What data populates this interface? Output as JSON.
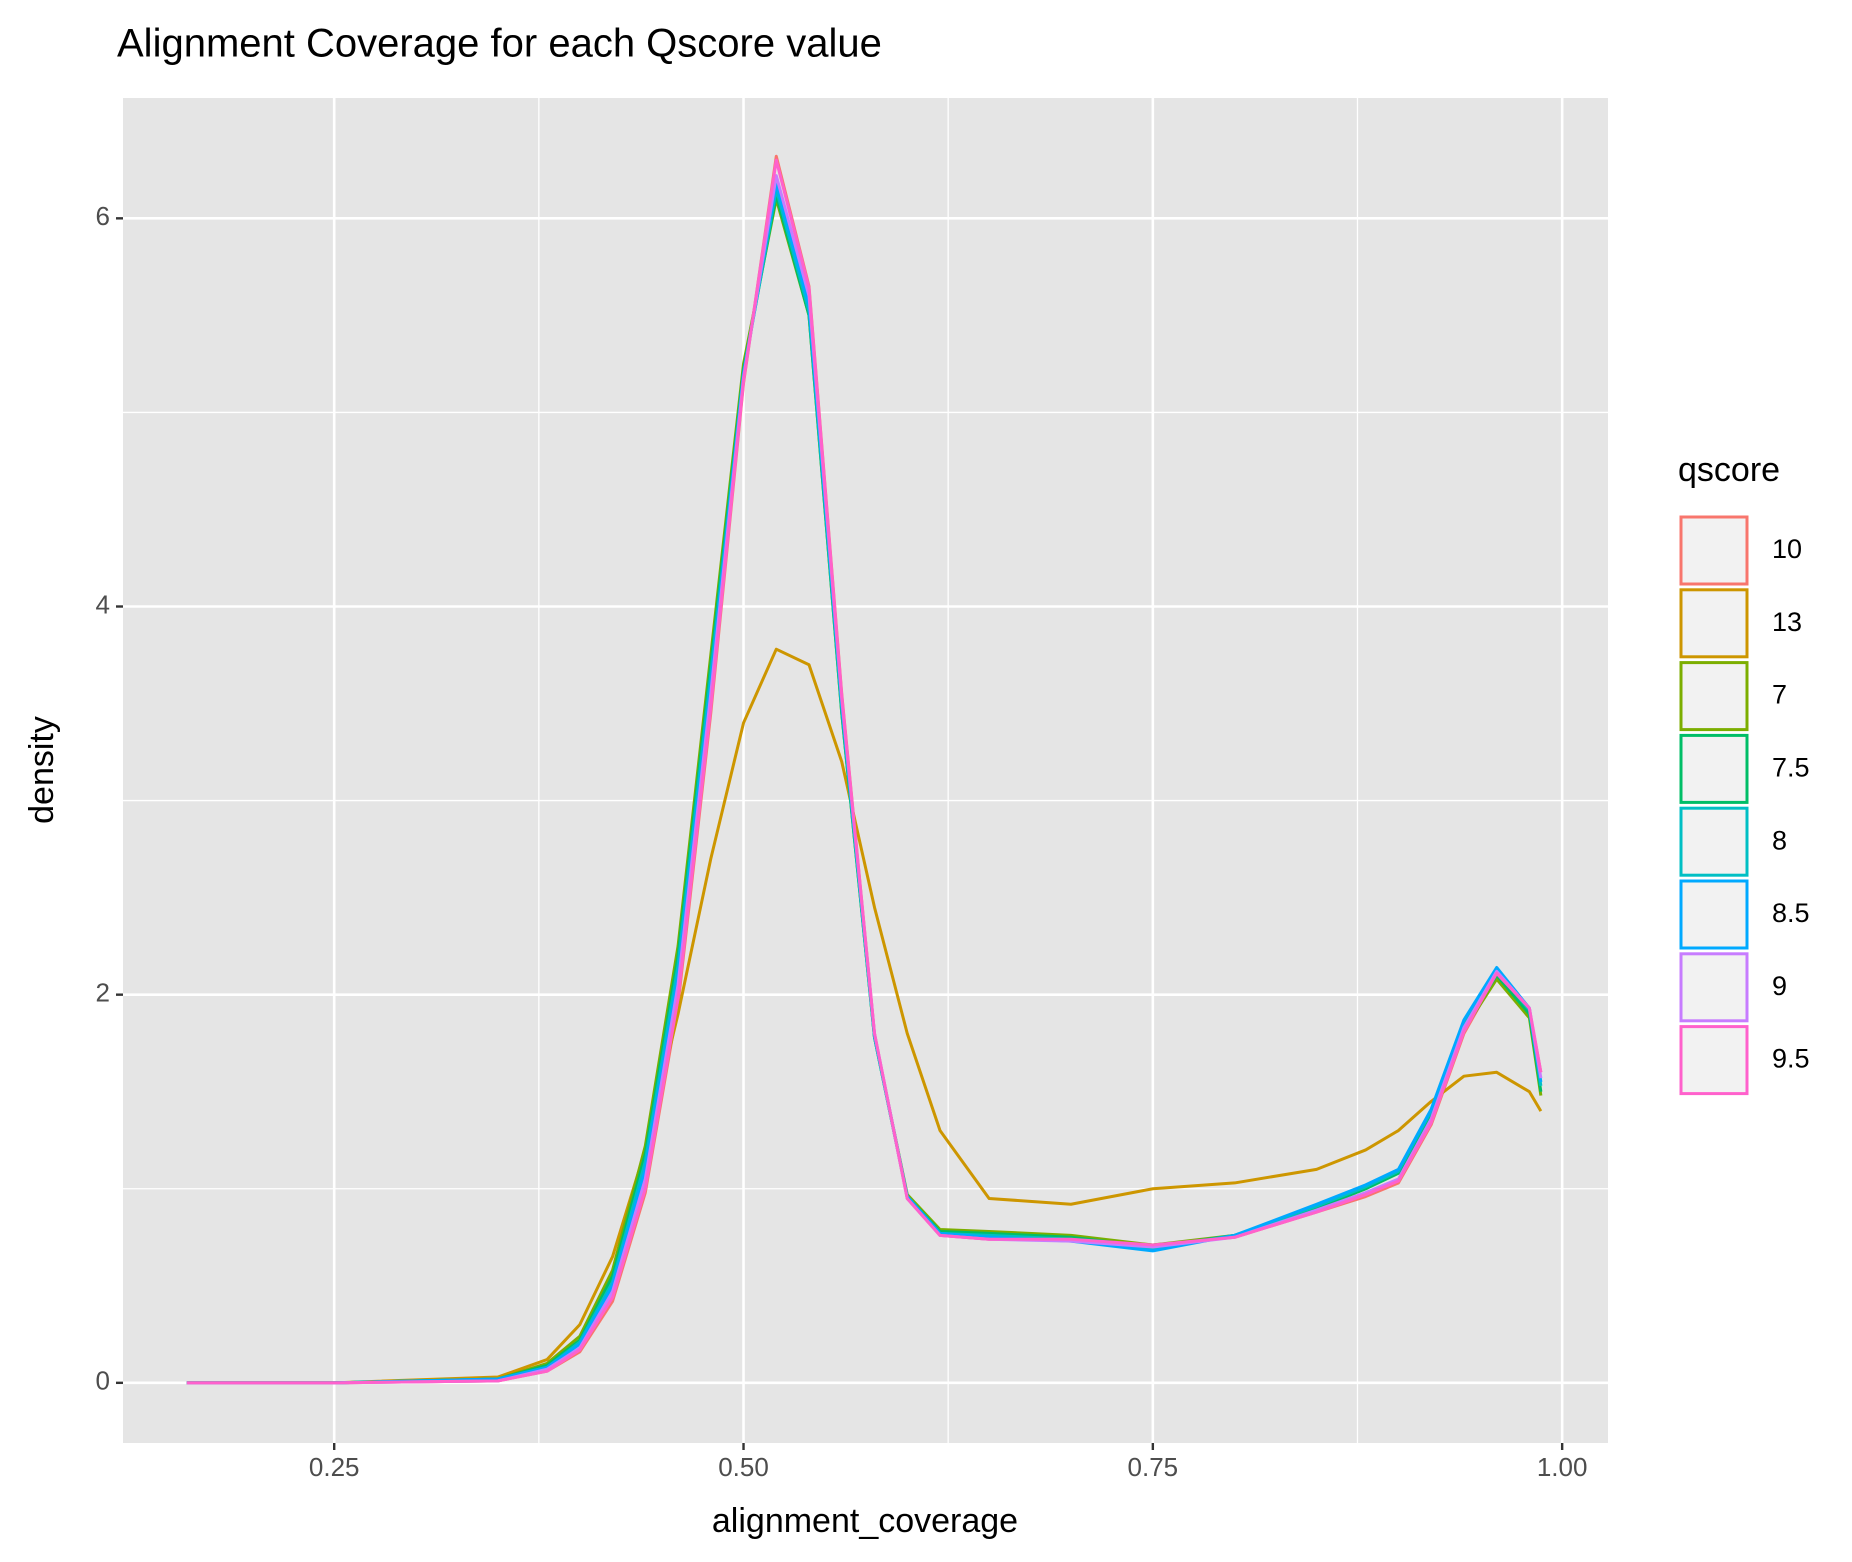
{
  "chart_data": {
    "type": "line",
    "title": "Alignment Coverage for each Qscore value",
    "x_label": "alignment_coverage",
    "y_label": "density",
    "legend_title": "qscore",
    "legend_position": "right",
    "grid": true,
    "xlim": [
      0.121,
      1.028
    ],
    "ylim": [
      -0.31,
      6.62
    ],
    "xticks": [
      {
        "value": 0.25,
        "label": "0.25"
      },
      {
        "value": 0.5,
        "label": "0.50"
      },
      {
        "value": 0.75,
        "label": "0.75"
      },
      {
        "value": 1.0,
        "label": "1.00"
      }
    ],
    "yticks": [
      0,
      2,
      4,
      6
    ],
    "x": [
      0.16,
      0.25,
      0.35,
      0.38,
      0.4,
      0.42,
      0.44,
      0.46,
      0.48,
      0.5,
      0.52,
      0.54,
      0.56,
      0.58,
      0.6,
      0.62,
      0.65,
      0.7,
      0.75,
      0.8,
      0.85,
      0.88,
      0.9,
      0.92,
      0.94,
      0.96,
      0.98,
      0.987
    ],
    "series": [
      {
        "name": "10",
        "color": "#F8766D",
        "values": [
          0,
          0,
          0.01,
          0.06,
          0.16,
          0.42,
          0.98,
          1.95,
          3.45,
          5.15,
          6.32,
          5.65,
          3.55,
          1.8,
          0.95,
          0.76,
          0.74,
          0.74,
          0.71,
          0.75,
          0.88,
          0.96,
          1.03,
          1.33,
          1.8,
          2.1,
          1.92,
          1.6
        ]
      },
      {
        "name": "13",
        "color": "#CD9600",
        "values": [
          0,
          0,
          0.03,
          0.12,
          0.3,
          0.65,
          1.2,
          1.9,
          2.7,
          3.4,
          3.78,
          3.7,
          3.2,
          2.45,
          1.8,
          1.3,
          0.95,
          0.92,
          1.0,
          1.03,
          1.1,
          1.2,
          1.3,
          1.45,
          1.58,
          1.6,
          1.5,
          1.4
        ]
      },
      {
        "name": "7",
        "color": "#7CAE00",
        "values": [
          0,
          0,
          0.02,
          0.1,
          0.24,
          0.58,
          1.22,
          2.25,
          3.75,
          5.25,
          6.1,
          5.5,
          3.45,
          1.78,
          0.97,
          0.79,
          0.78,
          0.76,
          0.71,
          0.76,
          0.9,
          1.0,
          1.09,
          1.38,
          1.82,
          2.08,
          1.88,
          1.48
        ]
      },
      {
        "name": "7.5",
        "color": "#00BE67",
        "values": [
          0,
          0,
          0.02,
          0.09,
          0.22,
          0.55,
          1.18,
          2.2,
          3.7,
          5.22,
          6.12,
          5.5,
          3.45,
          1.78,
          0.96,
          0.78,
          0.77,
          0.75,
          0.7,
          0.76,
          0.9,
          1.0,
          1.08,
          1.38,
          1.83,
          2.1,
          1.9,
          1.5
        ]
      },
      {
        "name": "8",
        "color": "#00BFC4",
        "values": [
          0,
          0,
          0.02,
          0.08,
          0.21,
          0.52,
          1.14,
          2.15,
          3.65,
          5.2,
          6.15,
          5.52,
          3.47,
          1.78,
          0.96,
          0.77,
          0.76,
          0.74,
          0.69,
          0.76,
          0.91,
          1.01,
          1.09,
          1.4,
          1.85,
          2.12,
          1.92,
          1.53
        ]
      },
      {
        "name": "8.5",
        "color": "#00A9FF",
        "values": [
          0,
          0,
          0.02,
          0.08,
          0.2,
          0.5,
          1.1,
          2.1,
          3.6,
          5.2,
          6.18,
          5.55,
          3.5,
          1.79,
          0.96,
          0.77,
          0.75,
          0.73,
          0.68,
          0.76,
          0.92,
          1.02,
          1.1,
          1.41,
          1.87,
          2.14,
          1.93,
          1.55
        ]
      },
      {
        "name": "9",
        "color": "#C77CFF",
        "values": [
          0,
          0,
          0.01,
          0.07,
          0.18,
          0.47,
          1.05,
          2.05,
          3.55,
          5.18,
          6.22,
          5.6,
          3.52,
          1.8,
          0.95,
          0.76,
          0.74,
          0.73,
          0.7,
          0.75,
          0.89,
          0.98,
          1.05,
          1.36,
          1.83,
          2.12,
          1.93,
          1.57
        ]
      },
      {
        "name": "9.5",
        "color": "#FF61CC",
        "values": [
          0,
          0,
          0.01,
          0.06,
          0.17,
          0.44,
          1.0,
          1.98,
          3.48,
          5.16,
          6.3,
          5.64,
          3.54,
          1.8,
          0.95,
          0.76,
          0.74,
          0.74,
          0.71,
          0.75,
          0.88,
          0.97,
          1.04,
          1.34,
          1.81,
          2.11,
          1.93,
          1.6
        ]
      }
    ]
  }
}
